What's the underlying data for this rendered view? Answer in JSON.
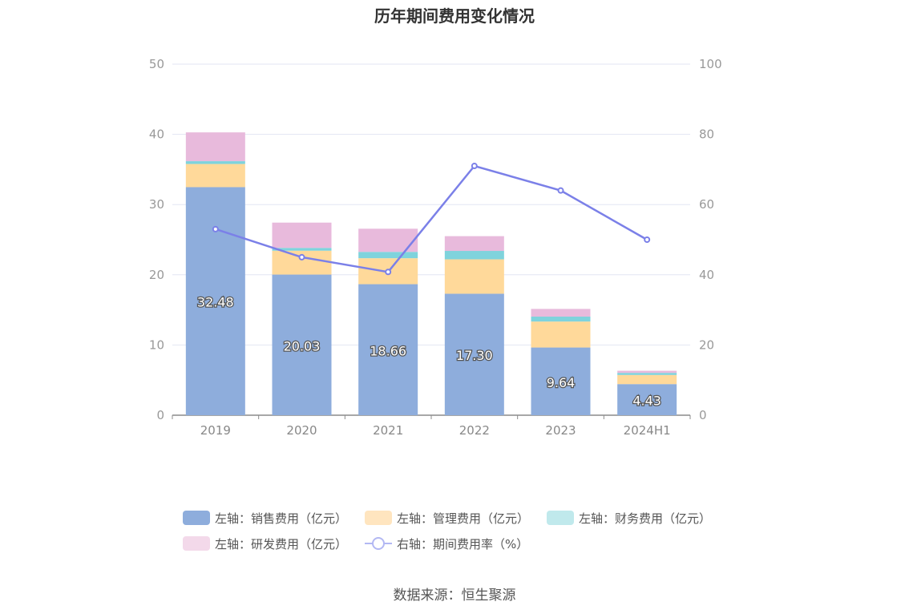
{
  "chart_data": {
    "type": "bar",
    "title": "历年期间费用变化情况",
    "categories": [
      "2019",
      "2020",
      "2021",
      "2022",
      "2023",
      "2024H1"
    ],
    "stacked": true,
    "series": [
      {
        "name": "左轴：销售费用（亿元）",
        "axis": "left",
        "color": "#8eaddc",
        "values": [
          32.48,
          20.03,
          18.66,
          17.3,
          9.64,
          4.43
        ],
        "labels": [
          "32.48",
          "20.03",
          "18.66",
          "17.30",
          "9.64",
          "4.43"
        ]
      },
      {
        "name": "左轴：管理费用（亿元）",
        "axis": "left",
        "color": "#ffd99a",
        "values": [
          3.3,
          3.4,
          3.7,
          4.9,
          3.7,
          1.3
        ]
      },
      {
        "name": "左轴：财务费用（亿元）",
        "axis": "left",
        "color": "#7fd3dc",
        "values": [
          0.4,
          0.4,
          0.9,
          1.2,
          0.7,
          0.3
        ]
      },
      {
        "name": "左轴：研发费用（亿元）",
        "axis": "left",
        "color": "#e8badc",
        "values": [
          4.1,
          3.6,
          3.3,
          2.1,
          1.1,
          0.3
        ]
      },
      {
        "name": "右轴：期间费用率（%）",
        "axis": "right",
        "type": "line",
        "color": "#7b80e8",
        "values": [
          53.0,
          45.0,
          40.8,
          71.0,
          64.0,
          50.0
        ]
      }
    ],
    "y_left": {
      "min": 0,
      "max": 50,
      "ticks": [
        "0",
        "10",
        "20",
        "30",
        "40",
        "50"
      ]
    },
    "y_right": {
      "min": 0,
      "max": 100,
      "ticks": [
        "0",
        "20",
        "40",
        "60",
        "80",
        "100"
      ]
    },
    "grid": true,
    "legend_position": "bottom",
    "legend_swatch_colors": [
      "#8eaddc",
      "#ffe5bf",
      "#c0e9ec",
      "#f3d9ea",
      "#b3b8f3"
    ]
  },
  "source": "数据来源：恒生聚源"
}
